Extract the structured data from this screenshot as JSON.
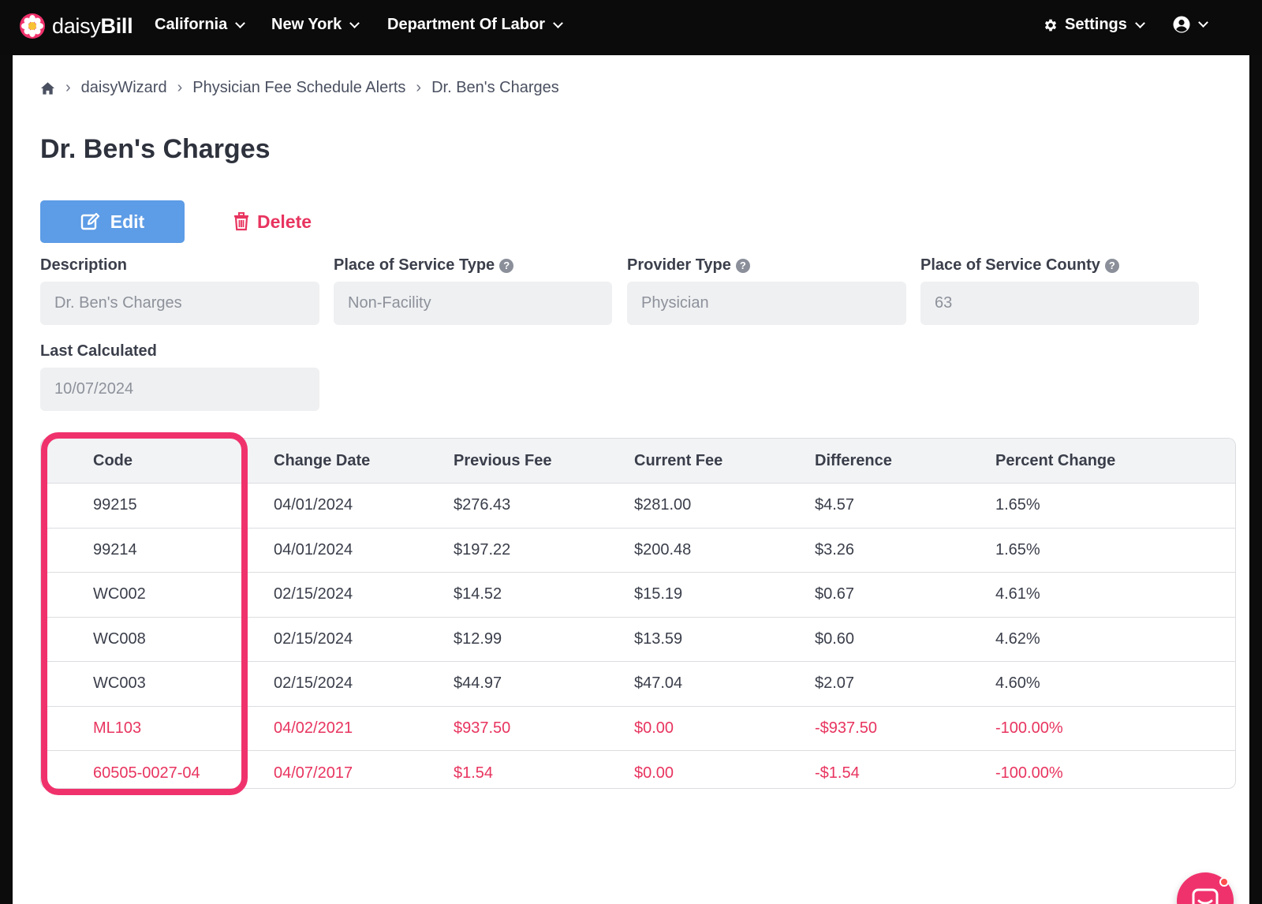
{
  "brand": {
    "name_light": "daisy",
    "name_bold": "Bill",
    "color": "#f0326c"
  },
  "nav": {
    "items": [
      {
        "label": "California"
      },
      {
        "label": "New York"
      },
      {
        "label": "Department Of Labor"
      }
    ],
    "settings_label": "Settings"
  },
  "breadcrumb": {
    "items": [
      "daisyWizard",
      "Physician Fee Schedule Alerts"
    ],
    "current": "Dr. Ben's Charges"
  },
  "page": {
    "title": "Dr. Ben's Charges"
  },
  "actions": {
    "edit_label": "Edit",
    "delete_label": "Delete"
  },
  "fields": {
    "description": {
      "label": "Description",
      "value": "Dr. Ben's Charges"
    },
    "place_of_service_type": {
      "label": "Place of Service Type",
      "value": "Non-Facility"
    },
    "provider_type": {
      "label": "Provider Type",
      "value": "Physician"
    },
    "place_of_service_county": {
      "label": "Place of Service County",
      "value": "63"
    },
    "last_calculated": {
      "label": "Last Calculated",
      "value": "10/07/2024"
    }
  },
  "table": {
    "headers": [
      "Code",
      "Change Date",
      "Previous Fee",
      "Current Fee",
      "Difference",
      "Percent Change"
    ],
    "rows": [
      [
        "99215",
        "04/01/2024",
        "$276.43",
        "$281.00",
        "$4.57",
        "1.65%"
      ],
      [
        "99214",
        "04/01/2024",
        "$197.22",
        "$200.48",
        "$3.26",
        "1.65%"
      ],
      [
        "WC002",
        "02/15/2024",
        "$14.52",
        "$15.19",
        "$0.67",
        "4.61%"
      ],
      [
        "WC008",
        "02/15/2024",
        "$12.99",
        "$13.59",
        "$0.60",
        "4.62%"
      ],
      [
        "WC003",
        "02/15/2024",
        "$44.97",
        "$47.04",
        "$2.07",
        "4.60%"
      ],
      [
        "ML103",
        "04/02/2021",
        "$937.50",
        "$0.00",
        "-$937.50",
        "-100.00%"
      ],
      [
        "60505-0027-04",
        "04/07/2017",
        "$1.54",
        "$0.00",
        "-$1.54",
        "-100.00%"
      ]
    ],
    "alert_rows": [
      5,
      6
    ]
  },
  "colors": {
    "primary": "#5d9ce6",
    "danger": "#e8345f",
    "highlight": "#f0326c"
  }
}
